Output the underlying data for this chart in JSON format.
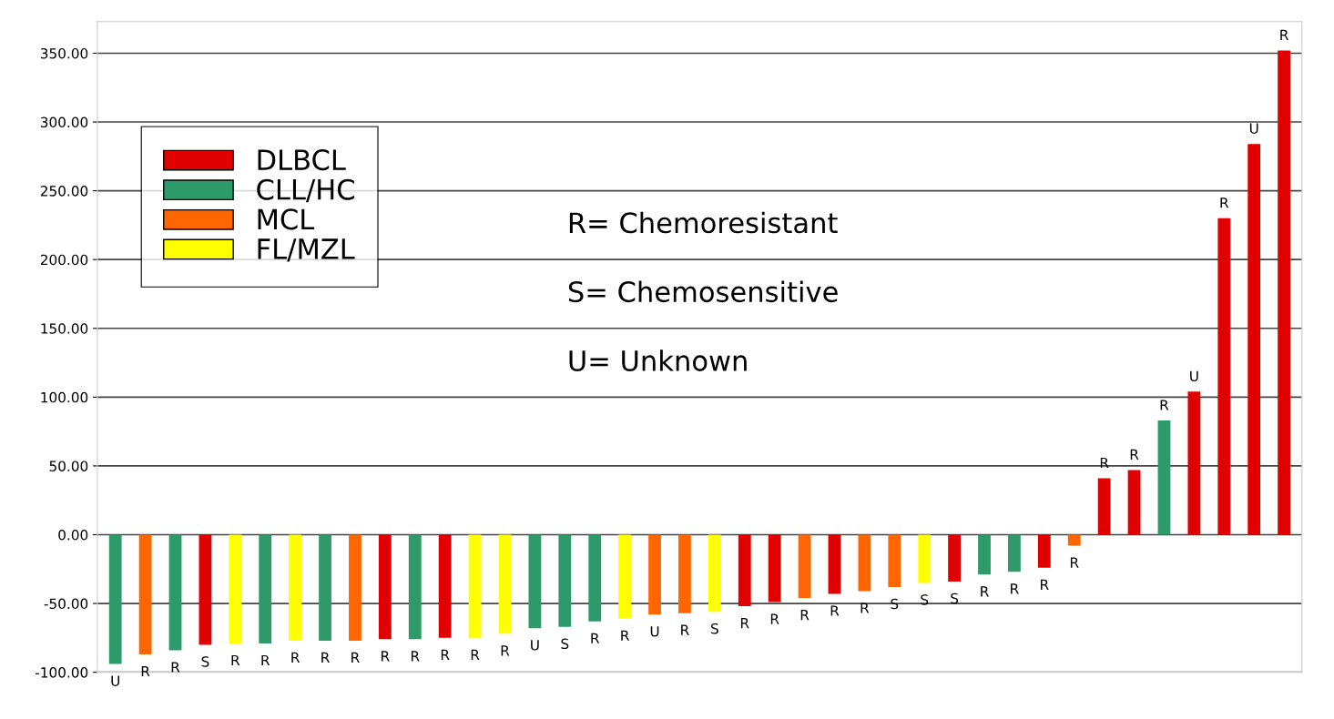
{
  "chart_data": {
    "type": "bar",
    "stacked": true,
    "categories": [
      null,
      null,
      null,
      null,
      null,
      null,
      null,
      null,
      null,
      null,
      null,
      null,
      null,
      null,
      null,
      null,
      null,
      null,
      null,
      null,
      null,
      null,
      null,
      null,
      null,
      null,
      null,
      null,
      null,
      null,
      null,
      null,
      null,
      null,
      null,
      null,
      null,
      null,
      null,
      null
    ],
    "series": [
      {
        "name": "DLBCL",
        "color": "#e00000",
        "values": [
          null,
          null,
          null,
          -80,
          null,
          null,
          null,
          null,
          null,
          -76,
          null,
          -75,
          null,
          null,
          null,
          null,
          null,
          null,
          null,
          null,
          null,
          -52,
          -49,
          null,
          -43,
          null,
          null,
          null,
          -34,
          null,
          null,
          -24,
          null,
          41,
          47,
          null,
          104,
          230,
          284,
          352
        ],
        "value_labels": [
          null,
          null,
          null,
          "S",
          null,
          null,
          null,
          null,
          null,
          "R",
          null,
          "R",
          null,
          null,
          null,
          null,
          null,
          null,
          null,
          null,
          null,
          "R",
          "R",
          null,
          "R",
          null,
          null,
          null,
          "S",
          null,
          null,
          "R",
          null,
          "R",
          "R",
          null,
          "U",
          "R",
          "U",
          "R"
        ]
      },
      {
        "name": "CLL/HC",
        "color": "#2e9a6a",
        "values": [
          -94,
          null,
          -84,
          null,
          null,
          -79,
          null,
          -77,
          null,
          null,
          -76,
          null,
          null,
          null,
          -68,
          -67,
          -63,
          null,
          null,
          null,
          null,
          null,
          null,
          null,
          null,
          null,
          null,
          null,
          null,
          -29,
          -27,
          null,
          null,
          null,
          null,
          83,
          null,
          null,
          null,
          null
        ],
        "value_labels": [
          "U",
          null,
          "R",
          null,
          null,
          "R",
          null,
          "R",
          null,
          null,
          "R",
          null,
          null,
          null,
          "U",
          "S",
          "R",
          null,
          null,
          null,
          null,
          null,
          null,
          null,
          null,
          null,
          null,
          null,
          null,
          "R",
          "R",
          null,
          null,
          null,
          null,
          "R",
          null,
          null,
          null,
          null
        ]
      },
      {
        "name": "MCL",
        "color": "#ff6600",
        "values": [
          null,
          -87,
          null,
          null,
          null,
          null,
          null,
          null,
          -77,
          null,
          null,
          null,
          null,
          null,
          null,
          null,
          null,
          null,
          -58,
          -57,
          null,
          null,
          null,
          -46,
          null,
          -41,
          -38,
          null,
          null,
          null,
          null,
          null,
          -8,
          null,
          null,
          null,
          null,
          null,
          null,
          null
        ],
        "value_labels": [
          null,
          "R",
          null,
          null,
          null,
          null,
          null,
          null,
          "R",
          null,
          null,
          null,
          null,
          null,
          null,
          null,
          null,
          null,
          "U",
          "R",
          null,
          null,
          null,
          "R",
          null,
          "R",
          "S",
          null,
          null,
          null,
          null,
          null,
          "R",
          null,
          null,
          null,
          null,
          null,
          null,
          null
        ]
      },
      {
        "name": "FL/MZL",
        "color": "#ffff00",
        "values": [
          null,
          null,
          null,
          null,
          -79,
          null,
          -77,
          null,
          null,
          null,
          null,
          null,
          -75,
          -72,
          null,
          null,
          null,
          -61,
          null,
          null,
          -56,
          null,
          null,
          null,
          null,
          null,
          null,
          -35,
          null,
          null,
          null,
          null,
          null,
          null,
          null,
          null,
          null,
          null,
          null,
          null
        ],
        "value_labels": [
          null,
          null,
          null,
          null,
          "R",
          null,
          "R",
          null,
          null,
          null,
          null,
          null,
          "R",
          "R",
          null,
          null,
          null,
          "R",
          null,
          null,
          "S",
          null,
          null,
          null,
          null,
          null,
          null,
          "S",
          null,
          null,
          null,
          null,
          null,
          null,
          null,
          null,
          null,
          null,
          null,
          null
        ]
      }
    ],
    "ylim": [
      -100,
      373
    ],
    "yticks": [
      {
        "value": -100,
        "label": "-100.00"
      },
      {
        "value": -50,
        "label": "-50.00"
      },
      {
        "value": 0,
        "label": "0.00"
      },
      {
        "value": 50,
        "label": "50.00"
      },
      {
        "value": 100,
        "label": "100.00"
      },
      {
        "value": 150,
        "label": "150.00"
      },
      {
        "value": 200,
        "label": "200.00"
      },
      {
        "value": 250,
        "label": "250.00"
      },
      {
        "value": 300,
        "label": "300.00"
      },
      {
        "value": 350,
        "label": "350.00"
      }
    ],
    "grid": "y",
    "legend": "top left",
    "annotations": [
      "R= Chemoresistant",
      "S= Chemosensitive",
      "U= Unknown"
    ]
  }
}
